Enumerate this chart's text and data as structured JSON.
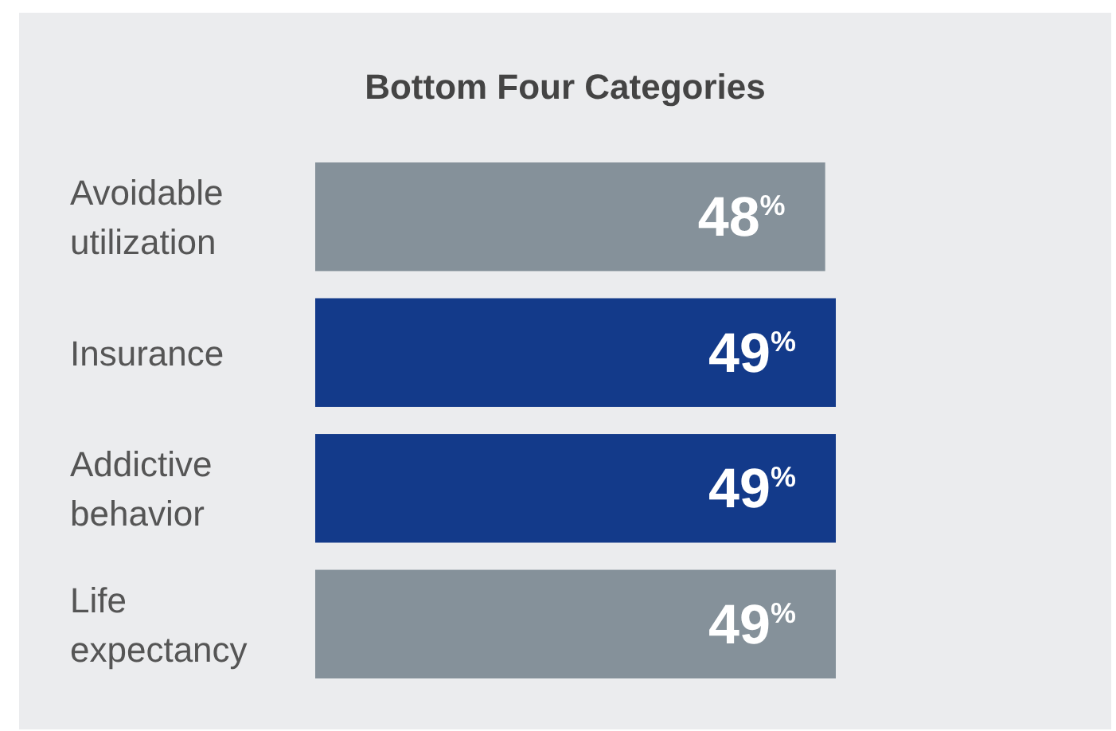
{
  "chart_data": {
    "type": "bar",
    "orientation": "horizontal",
    "title": "Bottom Four Categories",
    "categories": [
      "Avoidable utilization",
      "Insurance",
      "Addictive behavior",
      "Life expectancy"
    ],
    "values": [
      48,
      49,
      49,
      49
    ],
    "colors": [
      "#85919a",
      "#133a8a",
      "#133a8a",
      "#85919a"
    ],
    "value_labels": [
      "48$^{%}$",
      "49$^{%}$",
      "49$^{%}$",
      "49$^{%}$"
    ]
  }
}
